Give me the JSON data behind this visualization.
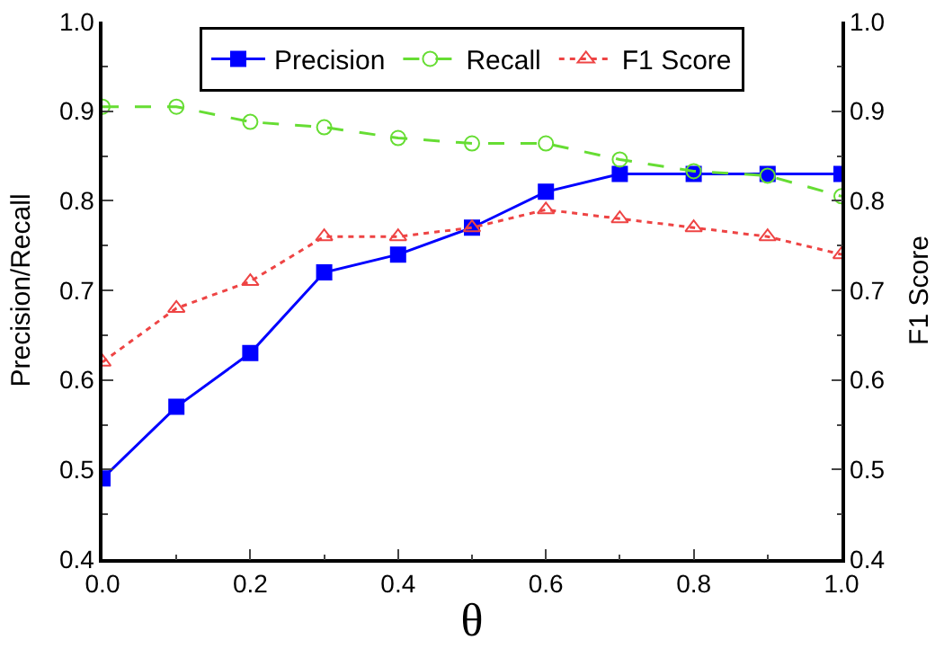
{
  "chart_data": {
    "type": "line",
    "xlabel": "θ",
    "ylabel": "Precision/Recall",
    "y2label": "F1 Score",
    "x": [
      0,
      0.1,
      0.2,
      0.3,
      0.4,
      0.5,
      0.6,
      0.7,
      0.8,
      0.9,
      1.0
    ],
    "series": [
      {
        "name": "Precision",
        "color": "#0000ff",
        "marker": "square",
        "line_style": "solid",
        "values": [
          0.49,
          0.57,
          0.63,
          0.72,
          0.74,
          0.77,
          0.81,
          0.83,
          0.83,
          0.83,
          0.83
        ]
      },
      {
        "name": "Recall",
        "color": "#66dd33",
        "marker": "circle",
        "line_style": "dashed",
        "values": [
          0.905,
          0.905,
          0.888,
          0.882,
          0.87,
          0.864,
          0.864,
          0.846,
          0.833,
          0.828,
          0.805
        ]
      },
      {
        "name": "F1 Score",
        "color": "#ee4444",
        "marker": "triangle",
        "line_style": "dotted",
        "axis": "y2",
        "values": [
          0.62,
          0.68,
          0.71,
          0.76,
          0.76,
          0.77,
          0.79,
          0.78,
          0.77,
          0.76,
          0.74
        ]
      }
    ],
    "xlim": [
      0,
      1
    ],
    "xticks": [
      {
        "value": 0,
        "label": "0.0"
      },
      0.2,
      0.4,
      0.6,
      0.8,
      {
        "value": 1,
        "label": "1.0"
      }
    ],
    "ylim": [
      0.4,
      1
    ],
    "yticks": [
      0.4,
      0.5,
      0.6,
      0.7,
      0.8,
      0.9,
      {
        "value": 1,
        "label": "1.0"
      }
    ],
    "y2lim": [
      0.4,
      1
    ],
    "y2ticks": [
      0.4,
      0.5,
      0.6,
      0.7,
      0.8,
      0.9,
      {
        "value": 1,
        "label": "1.0"
      }
    ],
    "grid": false,
    "legend": "top"
  }
}
